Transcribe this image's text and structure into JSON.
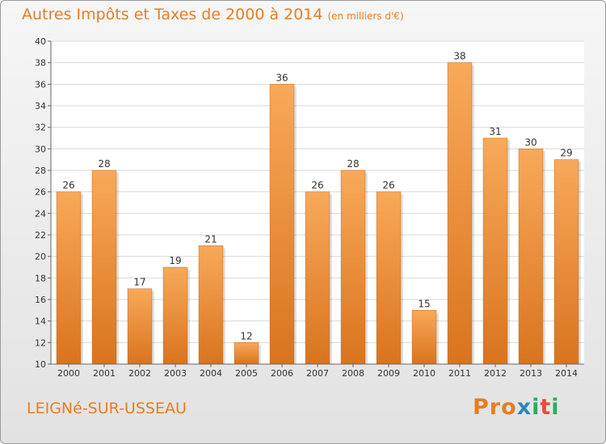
{
  "header": {
    "title": "Autres Impôts et Taxes de 2000 à 2014",
    "unit": "(en milliers d'€)"
  },
  "footer": {
    "town": "LEIGNé-SUR-USSEAU",
    "logo": {
      "text": "Proxiti",
      "colors": [
        "#e67e22",
        "#e67e22",
        "#e67e22",
        "#2e86c1",
        "#27ae60",
        "#e74c3c",
        "#27ae60"
      ]
    }
  },
  "colors": {
    "accent": "#e67e22",
    "bar_light": "#f8a95a",
    "bar_dark": "#d9741e"
  },
  "chart_data": {
    "type": "bar",
    "title": "Autres Impôts et Taxes de 2000 à 2014",
    "categories": [
      "2000",
      "2001",
      "2002",
      "2003",
      "2004",
      "2005",
      "2006",
      "2007",
      "2008",
      "2009",
      "2010",
      "2011",
      "2012",
      "2013",
      "2014"
    ],
    "values": [
      26,
      28,
      17,
      19,
      21,
      12,
      36,
      26,
      28,
      26,
      15,
      38,
      31,
      30,
      29
    ],
    "xlabel": "",
    "ylabel": "",
    "ylim": [
      10,
      40
    ],
    "yticks": [
      10,
      12,
      14,
      16,
      18,
      20,
      22,
      24,
      26,
      28,
      30,
      32,
      34,
      36,
      38,
      40
    ],
    "grid": true,
    "legend": "none"
  }
}
